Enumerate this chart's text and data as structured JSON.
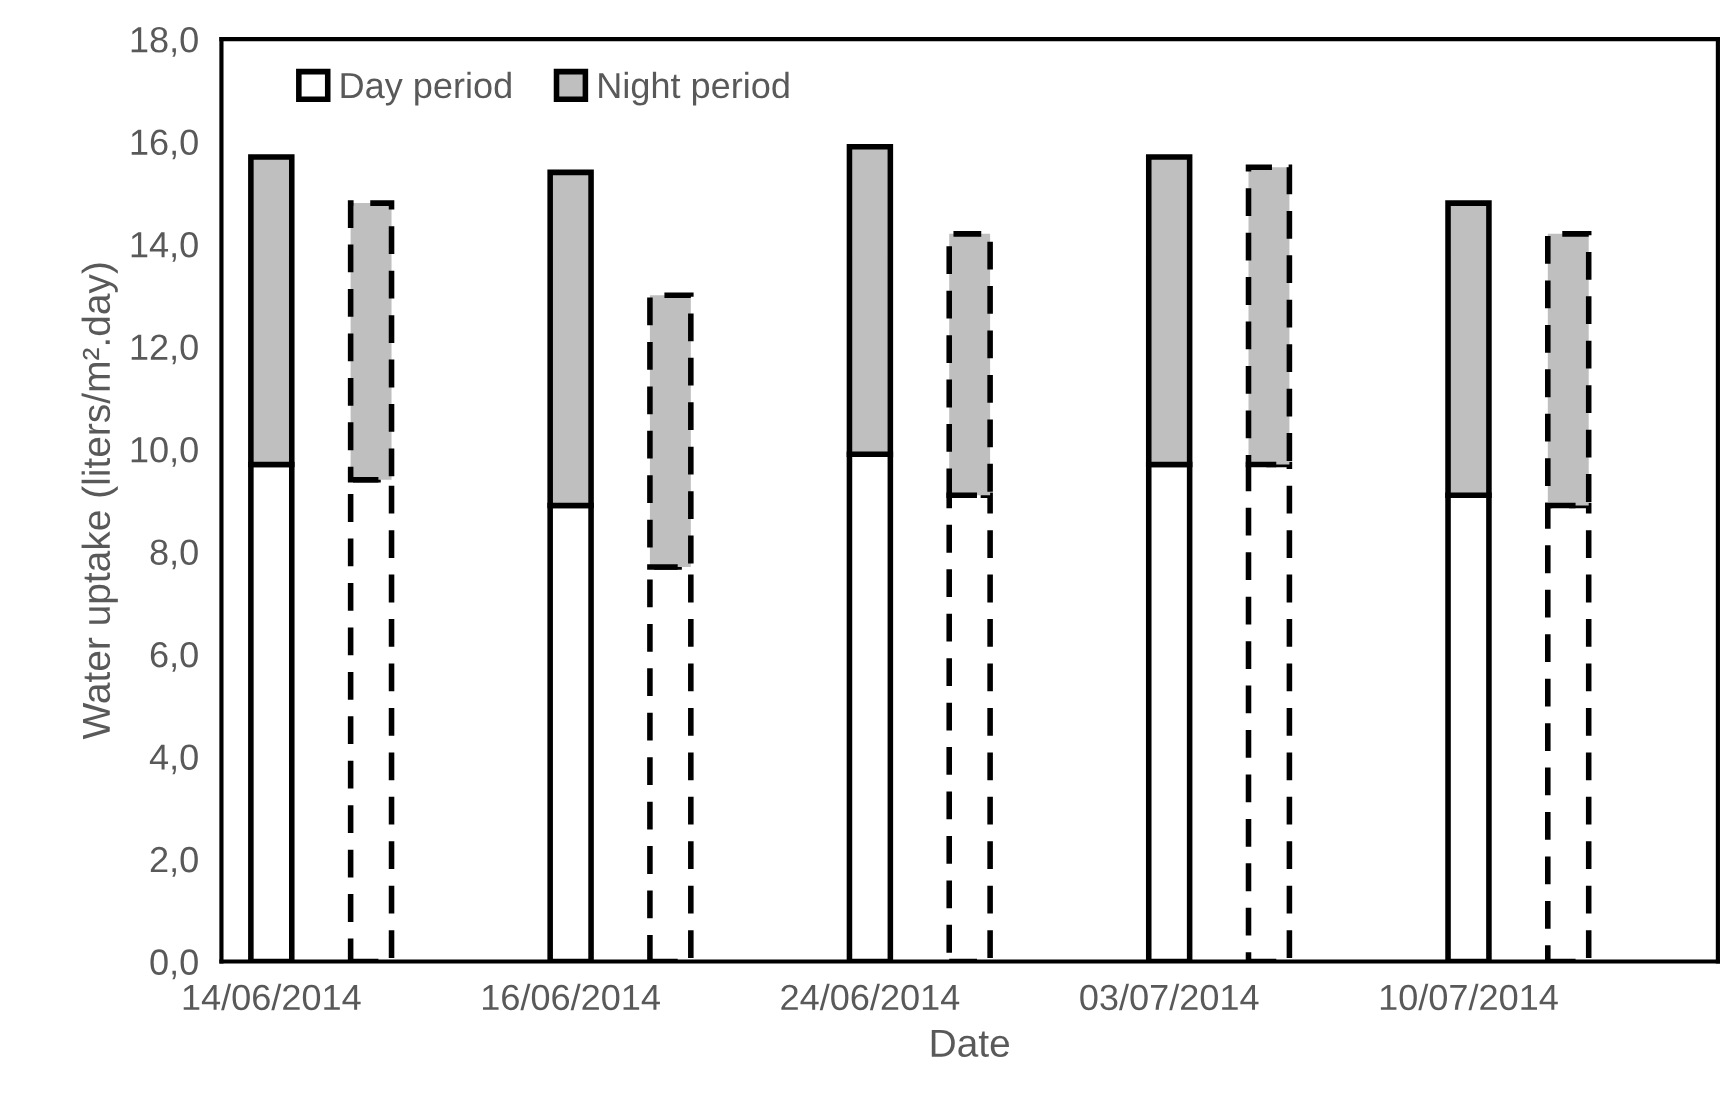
{
  "chart_data": {
    "type": "bar",
    "stacked": true,
    "xlabel": "Date",
    "ylabel": "Water uptake (liters/m².day)",
    "categories": [
      "14/06/2014",
      null,
      null,
      "16/06/2014",
      null,
      null,
      "24/06/2014",
      null,
      null,
      "03/07/2014",
      null,
      null,
      "10/07/2014",
      null,
      null
    ],
    "series": [
      {
        "name": "Day period",
        "color": "#ffffff",
        "line_style": "solid",
        "values": [
          9.7,
          null,
          null,
          8.9,
          null,
          null,
          9.9,
          null,
          null,
          9.7,
          null,
          null,
          9.1,
          null,
          null
        ]
      },
      {
        "name": "Night period",
        "color": "#bfbfbf",
        "line_style": "solid",
        "values": [
          6.0,
          null,
          null,
          6.5,
          null,
          null,
          6.0,
          null,
          null,
          6.0,
          null,
          null,
          5.7,
          null,
          null
        ]
      },
      {
        "color": "#ffffff",
        "line_style": "dashed",
        "values": [
          null,
          9.4,
          null,
          null,
          7.7,
          null,
          null,
          9.1,
          null,
          null,
          9.7,
          null,
          null,
          8.9,
          null
        ]
      },
      {
        "color": "#bfbfbf",
        "line_style": "dashed",
        "values": [
          null,
          5.4,
          null,
          null,
          5.3,
          null,
          null,
          5.1,
          null,
          null,
          5.8,
          null,
          null,
          5.3,
          null
        ]
      }
    ],
    "ylim": [
      0,
      18
    ],
    "yticks": [
      {
        "value": 0,
        "label": "0,0"
      },
      {
        "value": 2,
        "label": "2,0"
      },
      {
        "value": 4,
        "label": "4,0"
      },
      {
        "value": 6,
        "label": "6,0"
      },
      {
        "value": 8,
        "label": "8,0"
      },
      {
        "value": 10,
        "label": "10,0"
      },
      {
        "value": 12,
        "label": "12,0"
      },
      {
        "value": 14,
        "label": "14,0"
      },
      {
        "value": 16,
        "label": "16,0"
      },
      {
        "value": 18,
        "label": "18,0"
      }
    ],
    "grid": false,
    "legend": "top left"
  }
}
